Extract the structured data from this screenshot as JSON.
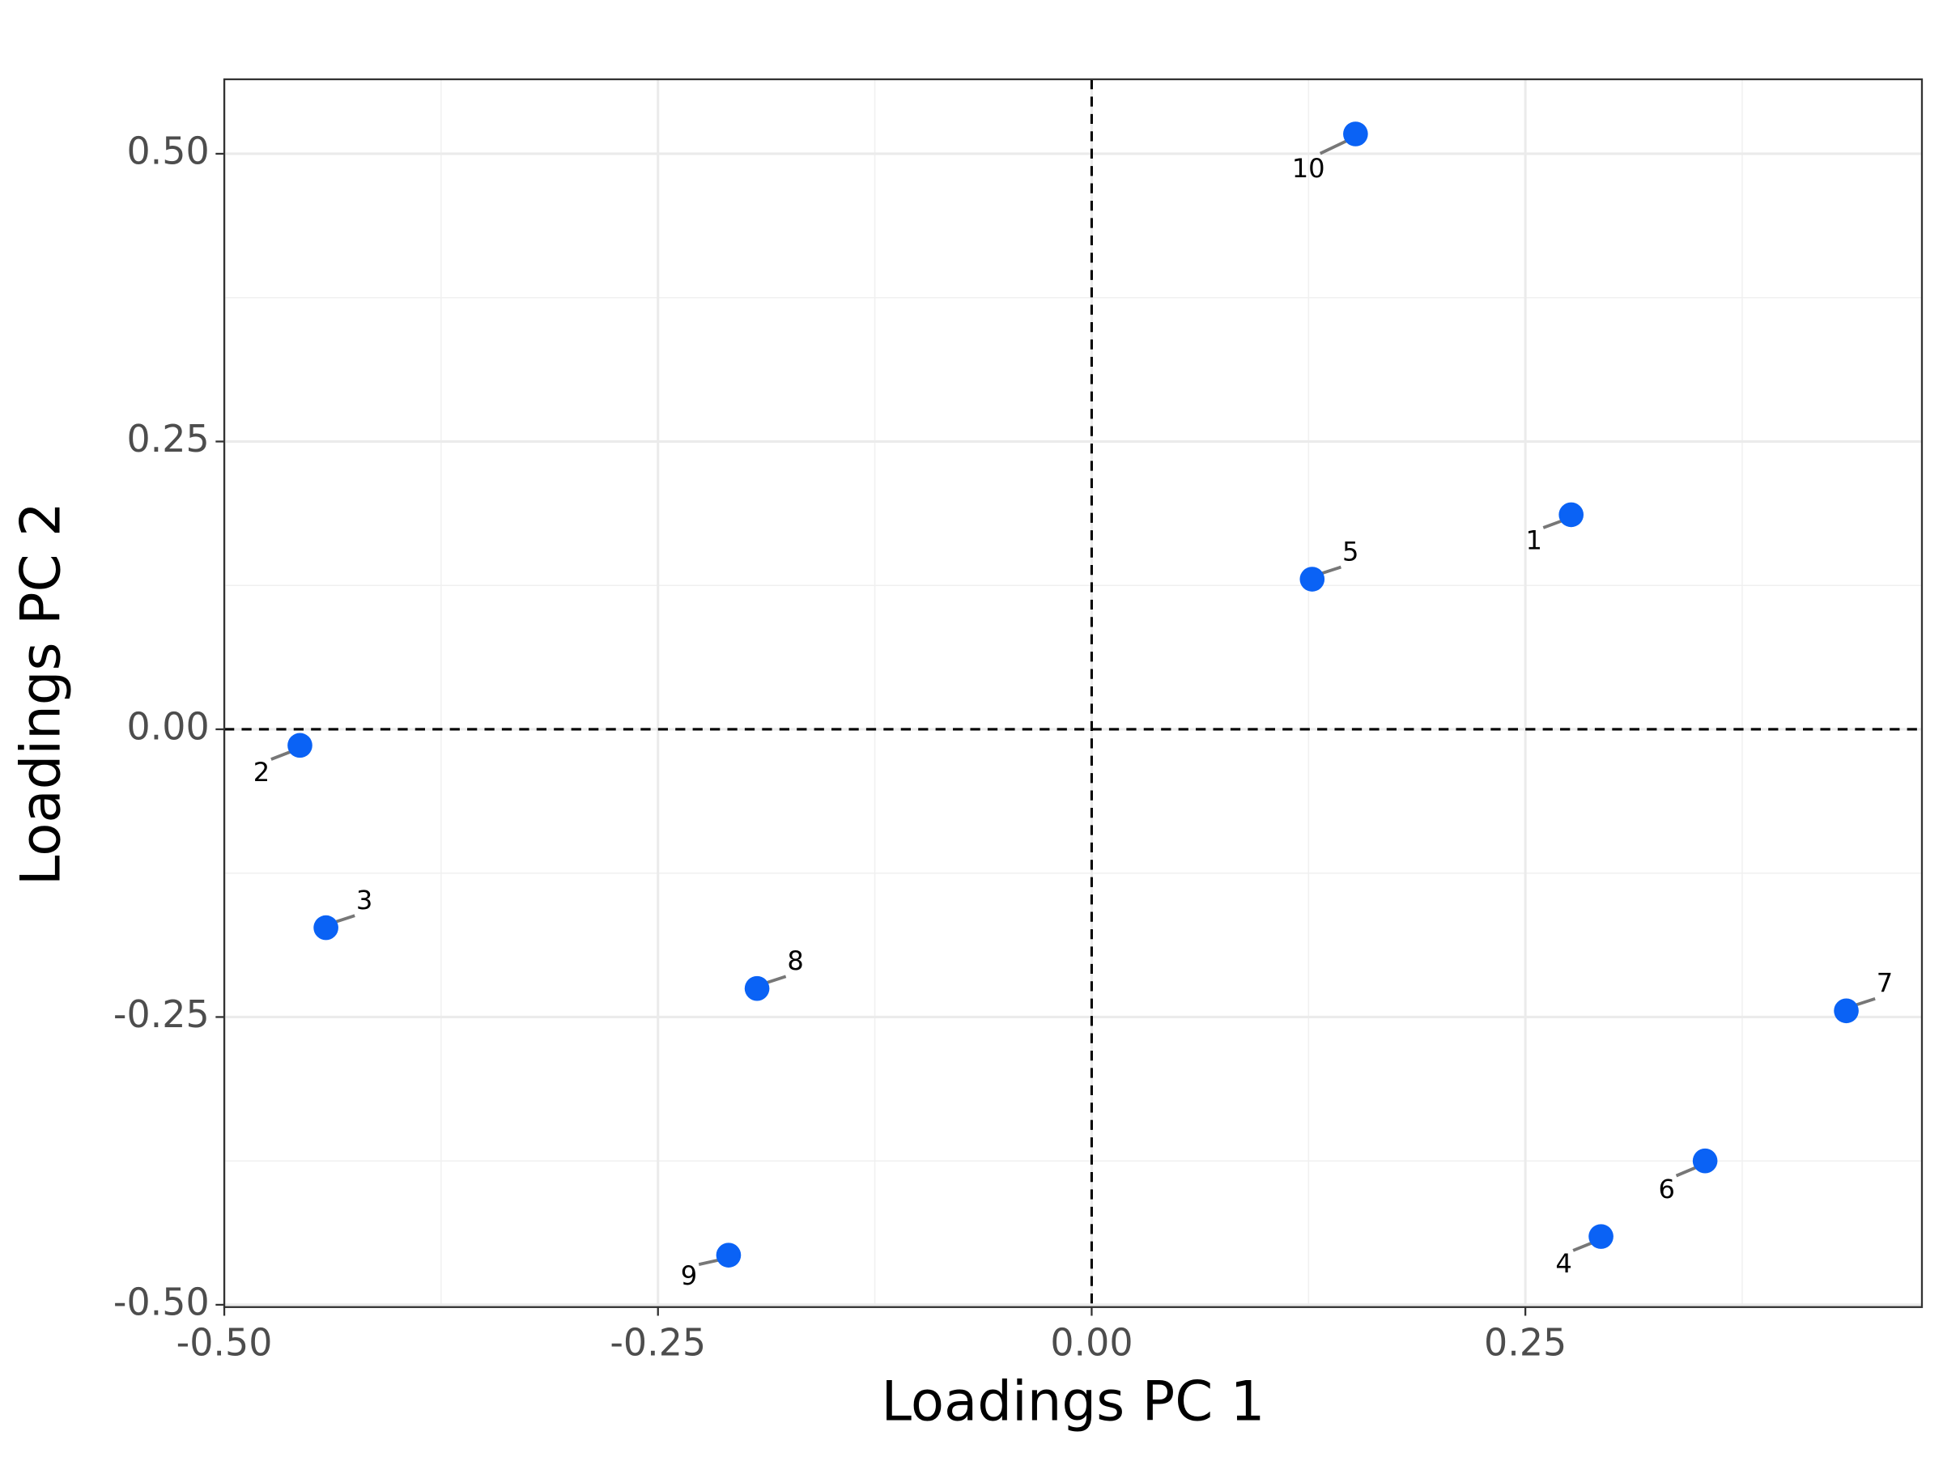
{
  "chart_data": {
    "type": "scatter",
    "x_label": "Loadings PC 1",
    "y_label": "Loadings PC 2",
    "series": [
      {
        "color": "#0a62f5",
        "labels": [
          "1",
          "2",
          "3",
          "4",
          "5",
          "6",
          "7",
          "8",
          "9",
          "10"
        ],
        "x": [
          0.2764,
          -0.4564,
          -0.4414,
          0.2936,
          0.1271,
          0.3536,
          0.435,
          -0.1929,
          -0.2093,
          0.1521
        ],
        "values": [
          0.1864,
          -0.014,
          -0.1724,
          -0.4407,
          0.1304,
          -0.375,
          -0.2446,
          -0.2252,
          -0.4569,
          0.5172
        ]
      }
    ],
    "xlim": [
      -0.5,
      0.4786
    ],
    "ylim": [
      -0.502,
      0.5647
    ],
    "xticks": [
      {
        "value": -0.5,
        "label": "-0.50"
      },
      {
        "value": -0.25,
        "label": "-0.25"
      },
      {
        "value": 0,
        "label": "0.00"
      },
      {
        "value": 0.25,
        "label": "0.25"
      }
    ],
    "yticks": [
      {
        "value": -0.5,
        "label": "-0.50"
      },
      {
        "value": -0.25,
        "label": "-0.25"
      },
      {
        "value": 0,
        "label": "0.00"
      },
      {
        "value": 0.25,
        "label": "0.25"
      },
      {
        "value": 0.5,
        "label": "0.50"
      }
    ],
    "hline": 0,
    "vline": 0,
    "grid": true
  }
}
